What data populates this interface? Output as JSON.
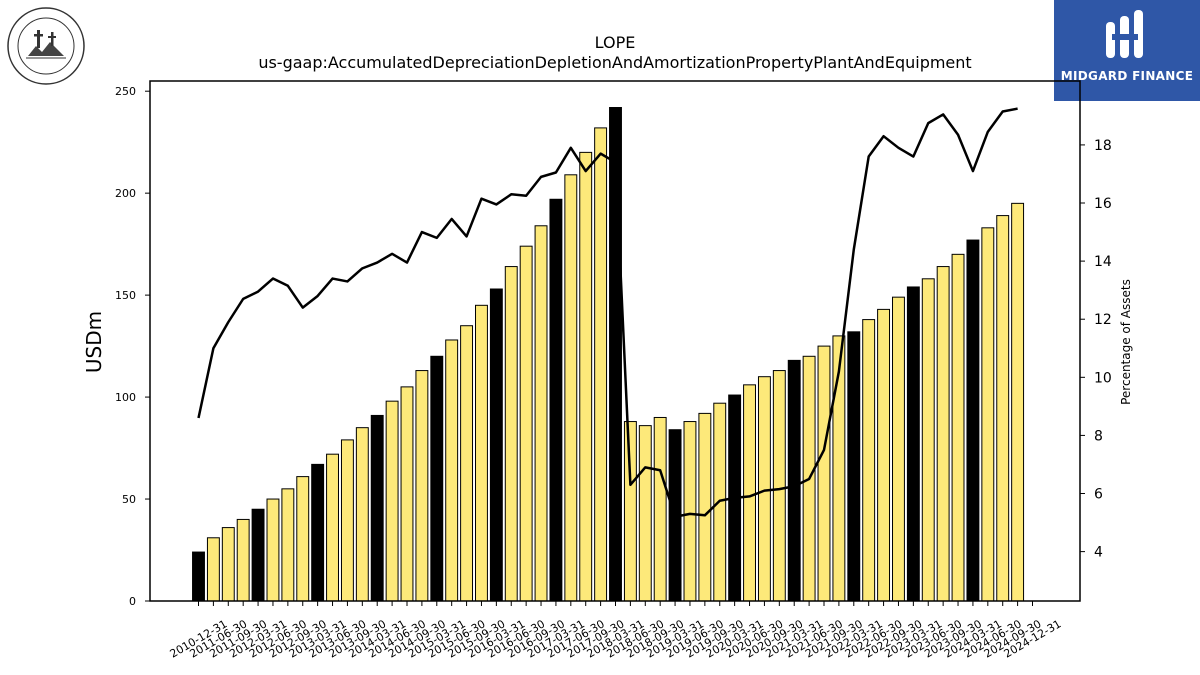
{
  "header": {
    "title": "LOPE",
    "subtitle": "us-gaap:AccumulatedDepreciationDepletionAndAmortizationPropertyPlantAndEquipment"
  },
  "logos": {
    "left_text": "GRAND CANYON UNIVERSITY",
    "left_subtext": "ARIZONA 1949",
    "right_text": "MIDGARD FINANCE"
  },
  "colors": {
    "bar_quarter": "#fde97a",
    "bar_year_end": "#000000",
    "line": "#000000",
    "brand_blue": "#2f57a7"
  },
  "chart_data": {
    "type": "bar",
    "title": "LOPE",
    "subtitle": "us-gaap:AccumulatedDepreciationDepletionAndAmortizationPropertyPlantAndEquipment",
    "ylabel": "USDm",
    "y2label": "Percentage of Assets",
    "ylim": [
      0,
      255
    ],
    "y2lim": [
      2.3,
      20.2
    ],
    "yticks": [
      0,
      50,
      100,
      150,
      200,
      250
    ],
    "y2ticks": [
      4,
      6,
      8,
      10,
      12,
      14,
      16,
      18
    ],
    "categories": [
      "2010-12-31",
      "2011-03-31",
      "2011-06-30",
      "2011-09-30",
      "2011-12-31",
      "2012-03-31",
      "2012-06-30",
      "2012-09-30",
      "2012-12-31",
      "2013-03-31",
      "2013-06-30",
      "2013-09-30",
      "2013-12-31",
      "2014-03-31",
      "2014-06-30",
      "2014-09-30",
      "2014-12-31",
      "2015-03-31",
      "2015-06-30",
      "2015-09-30",
      "2015-12-31",
      "2016-03-31",
      "2016-06-30",
      "2016-09-30",
      "2016-12-31",
      "2017-03-31",
      "2017-06-30",
      "2017-09-30",
      "2017-12-31",
      "2018-03-31",
      "2018-06-30",
      "2018-09-30",
      "2018-12-31",
      "2019-03-31",
      "2019-06-30",
      "2019-09-30",
      "2019-12-31",
      "2020-03-31",
      "2020-06-30",
      "2020-09-30",
      "2020-12-31",
      "2021-03-31",
      "2021-06-30",
      "2021-09-30",
      "2021-12-31",
      "2022-03-31",
      "2022-06-30",
      "2022-09-30",
      "2022-12-31",
      "2023-03-31",
      "2023-06-30",
      "2023-09-30",
      "2023-12-31",
      "2024-03-31",
      "2024-06-30",
      "2024-09-30",
      "2024-12-31"
    ],
    "tick_labels": [
      "2010-12-31",
      "2011-06-30",
      "2011-09-30",
      "2012-03-31",
      "2012-06-30",
      "2012-09-30",
      "2013-03-31",
      "2013-06-30",
      "2013-09-30",
      "2014-03-31",
      "2014-06-30",
      "2014-09-30",
      "2015-03-31",
      "2015-06-30",
      "2015-09-30",
      "2016-03-31",
      "2016-06-30",
      "2016-09-30",
      "2017-03-31",
      "2017-06-30",
      "2017-09-30",
      "2018-03-31",
      "2018-06-30",
      "2018-09-30",
      "2019-03-31",
      "2019-06-30",
      "2019-09-30",
      "2020-03-31",
      "2020-06-30",
      "2020-09-30",
      "2021-03-31",
      "2021-06-30",
      "2021-09-30",
      "2022-03-31",
      "2022-06-30",
      "2022-09-30",
      "2023-03-31",
      "2023-06-30",
      "2023-09-30",
      "2024-03-31",
      "2024-06-30",
      "2024-09-30",
      "2024-12-31"
    ],
    "series": [
      {
        "kind": "bar",
        "axis": "left",
        "values": [
          24,
          31,
          36,
          40,
          45,
          50,
          55,
          61,
          67,
          72,
          79,
          85,
          91,
          98,
          105,
          113,
          120,
          128,
          135,
          145,
          153,
          164,
          174,
          184,
          197,
          209,
          220,
          232,
          242,
          88,
          86,
          90,
          84,
          88,
          92,
          97,
          101,
          106,
          110,
          113,
          118,
          120,
          125,
          130,
          132,
          138,
          143,
          149,
          154,
          158,
          164,
          170,
          177,
          183,
          189,
          195,
          0
        ],
        "year_end_flags": [
          1,
          0,
          0,
          0,
          1,
          0,
          0,
          0,
          1,
          0,
          0,
          0,
          1,
          0,
          0,
          0,
          1,
          0,
          0,
          0,
          1,
          0,
          0,
          0,
          1,
          0,
          0,
          0,
          1,
          0,
          0,
          0,
          1,
          0,
          0,
          0,
          1,
          0,
          0,
          0,
          1,
          0,
          0,
          0,
          1,
          0,
          0,
          0,
          1,
          0,
          0,
          0,
          1,
          0,
          0,
          0,
          1
        ]
      },
      {
        "kind": "line",
        "axis": "right",
        "values": [
          8.6,
          11.0,
          11.9,
          12.7,
          12.95,
          13.4,
          13.15,
          12.4,
          12.8,
          13.4,
          13.3,
          13.75,
          13.95,
          14.25,
          13.95,
          15.0,
          14.8,
          15.45,
          14.85,
          16.15,
          15.95,
          16.3,
          16.25,
          16.9,
          17.05,
          17.9,
          17.1,
          17.7,
          17.4,
          6.3,
          6.9,
          6.8,
          5.2,
          5.3,
          5.25,
          5.75,
          5.85,
          5.9,
          6.1,
          6.15,
          6.25,
          6.5,
          7.5,
          10.2,
          14.4,
          17.6,
          18.3,
          17.9,
          17.6,
          18.75,
          19.05,
          18.35,
          17.1,
          18.45,
          19.15,
          19.25,
          null
        ]
      }
    ],
    "grid": false,
    "legend": "none"
  }
}
